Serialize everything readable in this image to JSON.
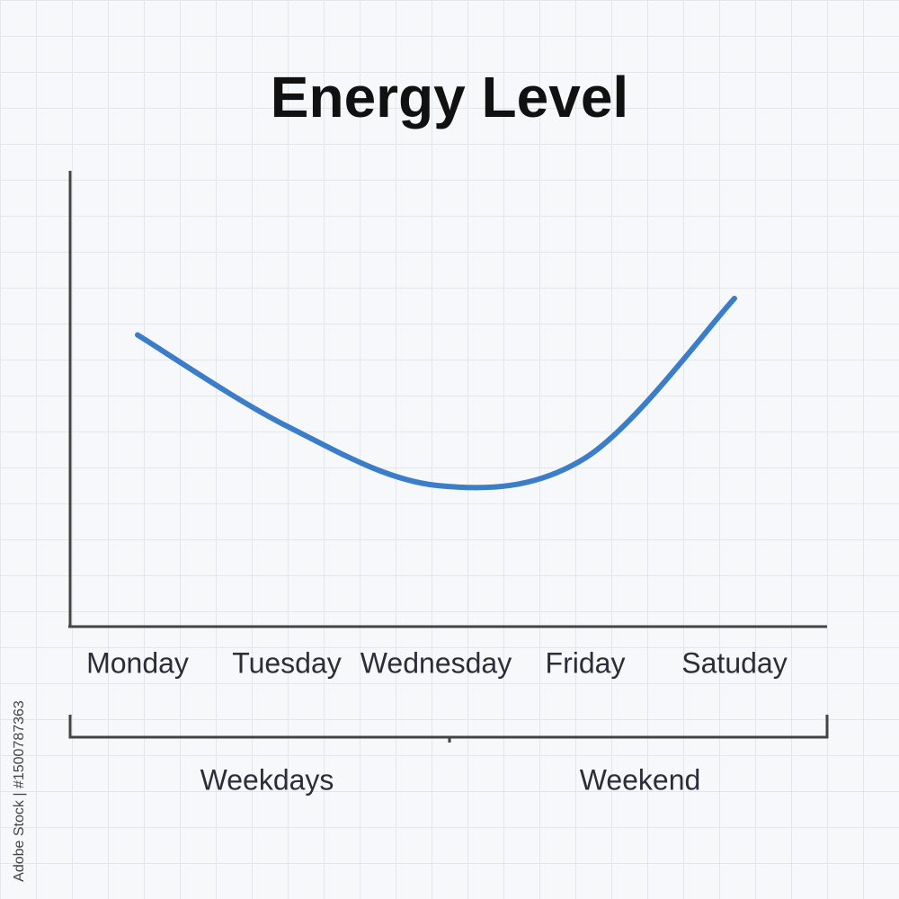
{
  "chart_data": {
    "type": "line",
    "title": "Energy Level",
    "categories": [
      "Monday",
      "Tuesday",
      "Wednesday",
      "Friday",
      "Satuday"
    ],
    "values": [
      64,
      44,
      31,
      37,
      72
    ],
    "color": "#3b7dc9",
    "ylim": [
      0,
      100
    ],
    "annotations": [
      "Weekdays",
      "Weekend"
    ],
    "watermark": "Adobe Stock | #1500787363"
  }
}
